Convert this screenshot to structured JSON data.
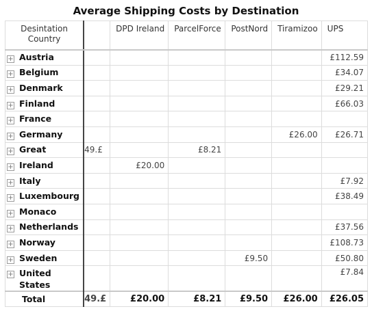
{
  "title": "Average Shipping Costs by Destination",
  "header": {
    "row_dimension": "Desintation Country",
    "columns": [
      "",
      "DPD Ireland",
      "ParcelForce",
      "PostNord",
      "Tiramizoo",
      "UPS"
    ]
  },
  "rows": [
    {
      "label": "Austria",
      "cells": [
        "",
        "",
        "",
        "",
        "",
        "£112.59"
      ]
    },
    {
      "label": "Belgium",
      "cells": [
        "",
        "",
        "",
        "",
        "",
        "£34.07"
      ]
    },
    {
      "label": "Denmark",
      "cells": [
        "",
        "",
        "",
        "",
        "",
        "£29.21"
      ]
    },
    {
      "label": "Finland",
      "cells": [
        "",
        "",
        "",
        "",
        "",
        "£66.03"
      ]
    },
    {
      "label": "France",
      "cells": [
        "",
        "",
        "",
        "",
        "",
        ""
      ]
    },
    {
      "label": "Germany",
      "cells": [
        "",
        "",
        "",
        "",
        "£26.00",
        "£26.71"
      ]
    },
    {
      "label": "Great",
      "cells": [
        "£.49",
        "",
        "£8.21",
        "",
        "",
        ""
      ]
    },
    {
      "label": "Ireland",
      "cells": [
        "",
        "£20.00",
        "",
        "",
        "",
        ""
      ]
    },
    {
      "label": "Italy",
      "cells": [
        "",
        "",
        "",
        "",
        "",
        "£7.92"
      ]
    },
    {
      "label": "Luxembourg",
      "cells": [
        "",
        "",
        "",
        "",
        "",
        "£38.49"
      ]
    },
    {
      "label": "Monaco",
      "cells": [
        "",
        "",
        "",
        "",
        "",
        ""
      ]
    },
    {
      "label": "Netherlands",
      "cells": [
        "",
        "",
        "",
        "",
        "",
        "£37.56"
      ]
    },
    {
      "label": "Norway",
      "cells": [
        "",
        "",
        "",
        "",
        "",
        "£108.73"
      ]
    },
    {
      "label": "Sweden",
      "cells": [
        "",
        "",
        "",
        "£9.50",
        "",
        "£50.80"
      ]
    },
    {
      "label": "United States",
      "cells": [
        "",
        "",
        "",
        "",
        "",
        "£7.84"
      ]
    }
  ],
  "total": {
    "label": "Total",
    "cells": [
      "£.49",
      "£20.00",
      "£8.21",
      "£9.50",
      "£26.00",
      "£26.05"
    ]
  },
  "expand_glyph": "⊞"
}
